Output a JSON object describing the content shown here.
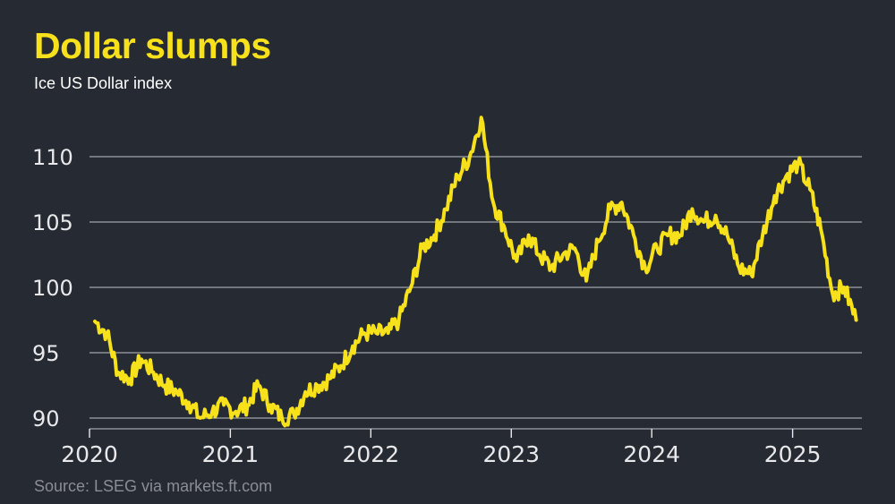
{
  "header": {
    "title": "Dollar slumps",
    "subtitle": "Ice US Dollar index"
  },
  "footer": {
    "source": "Source: LSEG via markets.ft.com"
  },
  "colors": {
    "background": "#262a33",
    "line": "#f6e11a",
    "gridline": "#8c8f96",
    "title": "#f6e11a",
    "text": "#e9e9ec",
    "source": "#8a8d95"
  },
  "chart_data": {
    "type": "line",
    "title": "Dollar slumps",
    "subtitle": "Ice US Dollar index",
    "xlabel": "",
    "ylabel": "",
    "xlim": [
      "2020-01-01",
      "2025-06-30"
    ],
    "ylim": [
      89.5,
      113.5
    ],
    "y_ticks": [
      90,
      95,
      100,
      105,
      110
    ],
    "x_ticks": [
      "2020",
      "2021",
      "2022",
      "2023",
      "2024",
      "2025"
    ],
    "grid": "horizontal",
    "legend": "none",
    "series": [
      {
        "name": "",
        "x": [
          "2020-01",
          "2020-02",
          "2020-03",
          "2020-04",
          "2020-05",
          "2020-06",
          "2020-07",
          "2020-08",
          "2020-09",
          "2020-10",
          "2020-11",
          "2020-12",
          "2021-01",
          "2021-02",
          "2021-03",
          "2021-04",
          "2021-05",
          "2021-06",
          "2021-07",
          "2021-08",
          "2021-09",
          "2021-10",
          "2021-11",
          "2021-12",
          "2022-01",
          "2022-02",
          "2022-03",
          "2022-04",
          "2022-05",
          "2022-06",
          "2022-07",
          "2022-08",
          "2022-09",
          "2022-10",
          "2022-11",
          "2022-12",
          "2023-01",
          "2023-02",
          "2023-03",
          "2023-04",
          "2023-05",
          "2023-06",
          "2023-07",
          "2023-08",
          "2023-09",
          "2023-10",
          "2023-11",
          "2023-12",
          "2024-01",
          "2024-02",
          "2024-03",
          "2024-04",
          "2024-05",
          "2024-06",
          "2024-07",
          "2024-08",
          "2024-09",
          "2024-10",
          "2024-11",
          "2024-12",
          "2025-01",
          "2025-02",
          "2025-03",
          "2025-04",
          "2025-05",
          "2025-06"
        ],
        "values": [
          97.4,
          96.5,
          93.5,
          93.0,
          94.5,
          93.5,
          92.5,
          92.0,
          91.2,
          90.0,
          90.5,
          91.0,
          90.5,
          91.0,
          92.5,
          91.0,
          90.0,
          90.3,
          92.0,
          92.5,
          93.0,
          94.0,
          95.5,
          96.5,
          96.5,
          96.5,
          97.5,
          100.0,
          103.0,
          104.0,
          106.0,
          108.5,
          110.0,
          113.0,
          106.5,
          104.5,
          102.0,
          104.0,
          102.5,
          101.5,
          102.5,
          103.0,
          100.5,
          103.5,
          106.0,
          106.5,
          104.0,
          101.5,
          103.0,
          104.0,
          104.0,
          106.0,
          105.0,
          105.5,
          104.0,
          101.5,
          101.0,
          104.0,
          107.0,
          108.5,
          109.5,
          107.5,
          104.5,
          99.5,
          100.0,
          97.5
        ]
      }
    ]
  }
}
